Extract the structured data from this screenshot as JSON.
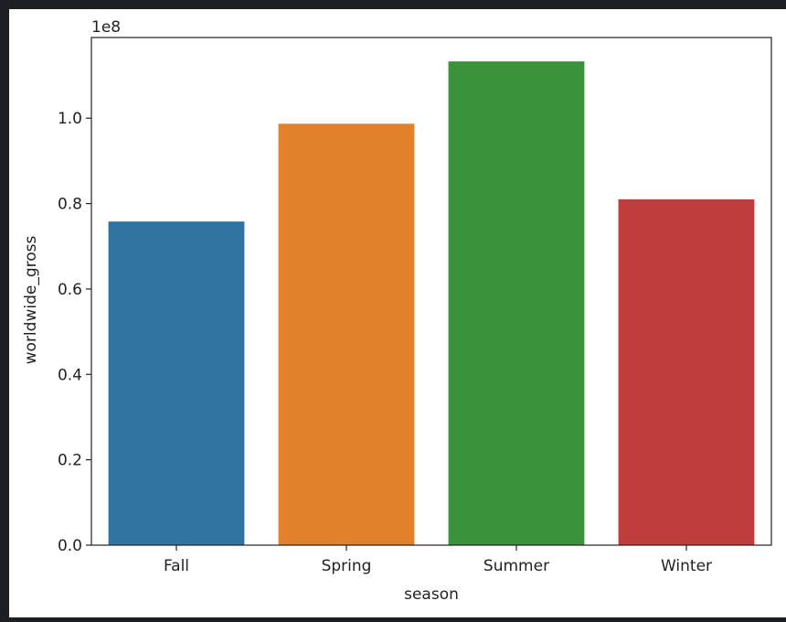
{
  "chart_data": {
    "type": "bar",
    "categories": [
      "Fall",
      "Spring",
      "Summer",
      "Winter"
    ],
    "values": [
      75800000,
      98700000,
      113300000,
      81000000
    ],
    "colors": [
      "#3274a1",
      "#e1812c",
      "#3a923a",
      "#c03d3e"
    ],
    "xlabel": "season",
    "ylabel": "worldwide_gross",
    "offset_text": "1e8",
    "yticks": [
      0.0,
      0.2,
      0.4,
      0.6,
      0.8,
      1.0
    ],
    "ytick_labels": [
      "0.0",
      "0.2",
      "0.4",
      "0.6",
      "0.8",
      "1.0"
    ],
    "ylim": [
      0,
      118900000
    ],
    "grid": false,
    "legend": false
  }
}
